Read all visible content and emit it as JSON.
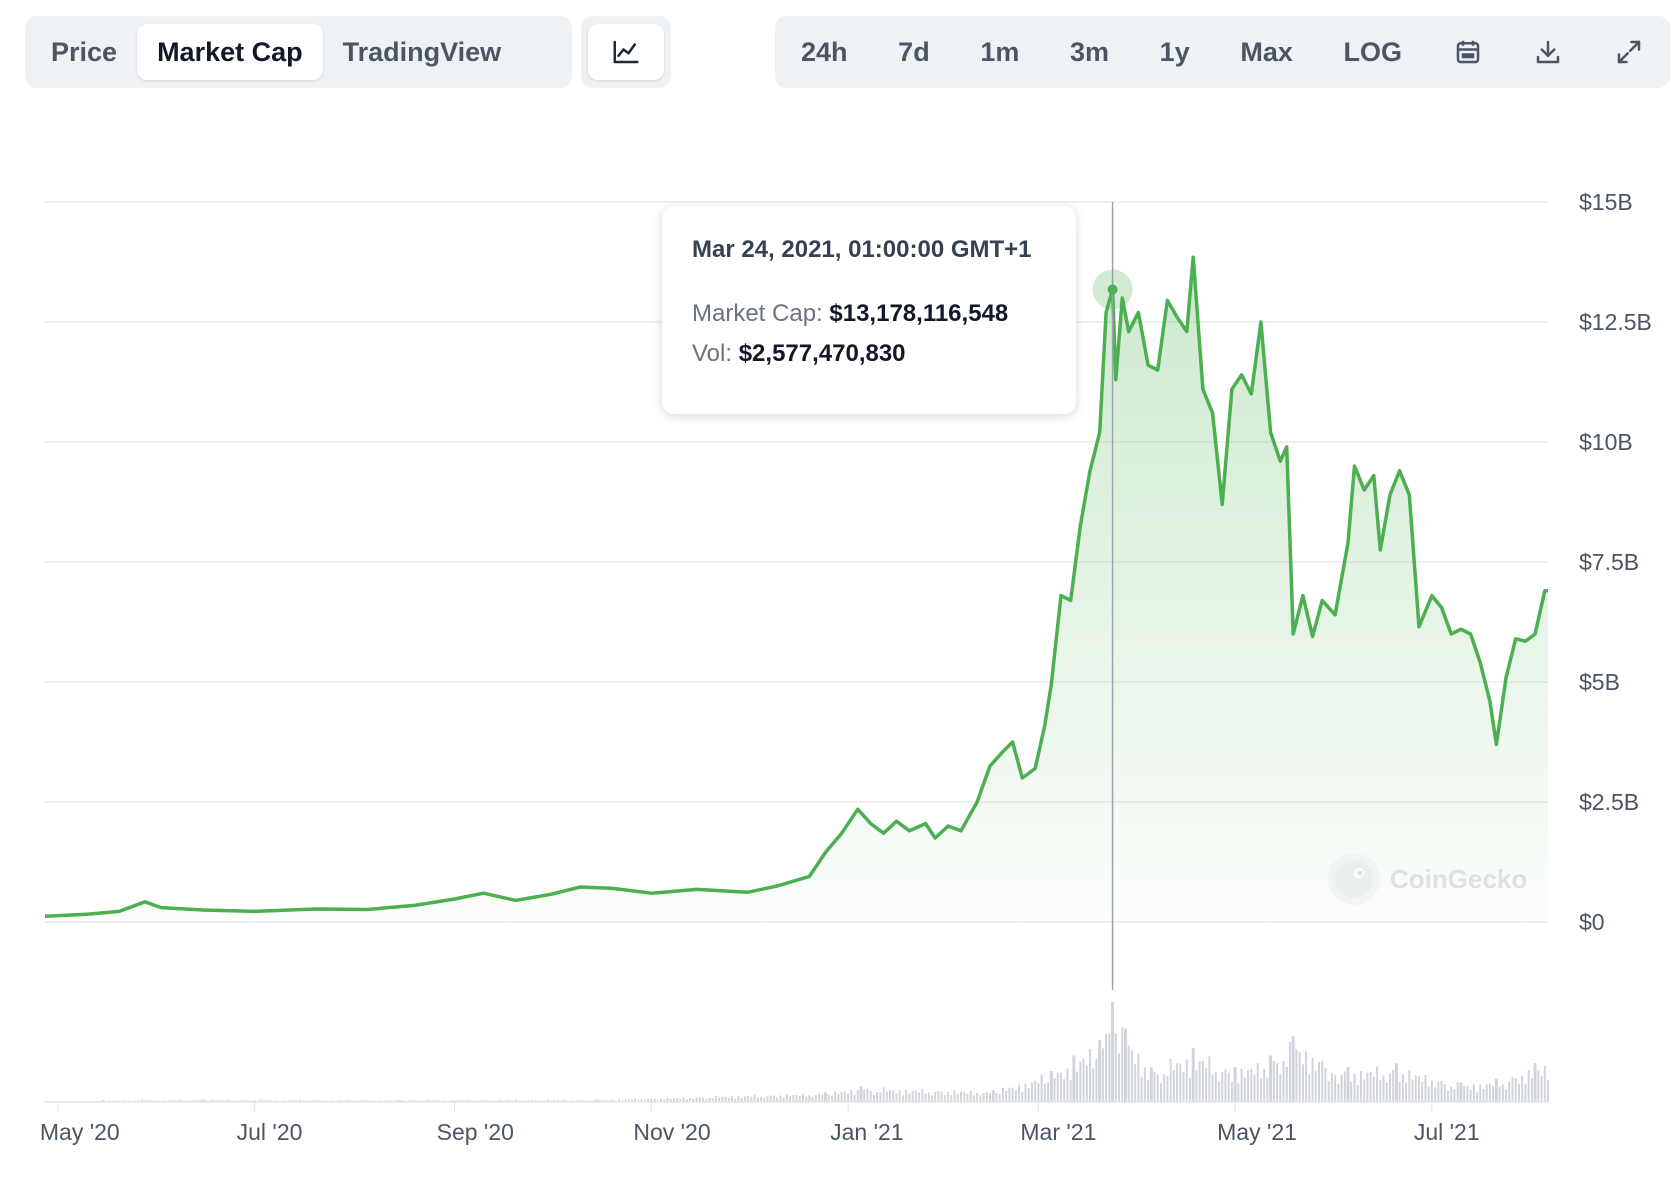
{
  "tabs": {
    "chart_type": [
      {
        "label": "Price",
        "active": false
      },
      {
        "label": "Market Cap",
        "active": true
      },
      {
        "label": "TradingView",
        "active": false
      }
    ],
    "chart_style_icon": "line-chart-icon",
    "ranges": [
      {
        "label": "24h"
      },
      {
        "label": "7d"
      },
      {
        "label": "1m"
      },
      {
        "label": "3m"
      },
      {
        "label": "1y"
      },
      {
        "label": "Max"
      },
      {
        "label": "LOG"
      }
    ],
    "actions": {
      "calendar": "calendar-icon",
      "download": "download-icon",
      "fullscreen": "expand-icon"
    }
  },
  "tooltip": {
    "date": "Mar 24, 2021, 01:00:00 GMT+1",
    "market_cap_label": "Market Cap:",
    "market_cap_value": "$13,178,116,548",
    "vol_label": "Vol:",
    "vol_value": "$2,577,470,830"
  },
  "watermark": "CoinGecko",
  "colors": {
    "line": "#4caf50",
    "fill": "#4caf50",
    "grid": "#e5e7eb",
    "volume": "#d1d5db",
    "crosshair": "#9ca3af"
  },
  "chart_data": {
    "type": "area",
    "title": "",
    "xlabel": "",
    "ylabel": "",
    "y_ticks": [
      "$0",
      "$2.5B",
      "$5B",
      "$7.5B",
      "$10B",
      "$12.5B",
      "$15B"
    ],
    "ylim": [
      0,
      15000000000
    ],
    "x_ticks": [
      {
        "label": "May '20",
        "date": "2020-05-01"
      },
      {
        "label": "Jul '20",
        "date": "2020-07-01"
      },
      {
        "label": "Sep '20",
        "date": "2020-09-01"
      },
      {
        "label": "Nov '20",
        "date": "2020-11-01"
      },
      {
        "label": "Jan '21",
        "date": "2021-01-01"
      },
      {
        "label": "Mar '21",
        "date": "2021-03-01"
      },
      {
        "label": "May '21",
        "date": "2021-05-01"
      },
      {
        "label": "Jul '21",
        "date": "2021-07-01"
      }
    ],
    "xlim": [
      "2020-04-27",
      "2021-08-06"
    ],
    "grid": true,
    "highlight": {
      "date": "2021-03-24",
      "value": 13178116548
    },
    "series": [
      {
        "name": "Market Cap",
        "points": [
          [
            "2020-04-27",
            0.12
          ],
          [
            "2020-05-10",
            0.16
          ],
          [
            "2020-05-20",
            0.22
          ],
          [
            "2020-05-28",
            0.42
          ],
          [
            "2020-06-02",
            0.3
          ],
          [
            "2020-06-15",
            0.25
          ],
          [
            "2020-07-01",
            0.22
          ],
          [
            "2020-07-20",
            0.27
          ],
          [
            "2020-08-05",
            0.26
          ],
          [
            "2020-08-20",
            0.35
          ],
          [
            "2020-09-01",
            0.48
          ],
          [
            "2020-09-10",
            0.6
          ],
          [
            "2020-09-20",
            0.45
          ],
          [
            "2020-10-01",
            0.58
          ],
          [
            "2020-10-10",
            0.73
          ],
          [
            "2020-10-20",
            0.7
          ],
          [
            "2020-11-01",
            0.6
          ],
          [
            "2020-11-15",
            0.68
          ],
          [
            "2020-12-01",
            0.62
          ],
          [
            "2020-12-10",
            0.75
          ],
          [
            "2020-12-20",
            0.95
          ],
          [
            "2020-12-25",
            1.45
          ],
          [
            "2020-12-30",
            1.85
          ],
          [
            "2021-01-04",
            2.35
          ],
          [
            "2021-01-08",
            2.05
          ],
          [
            "2021-01-12",
            1.85
          ],
          [
            "2021-01-16",
            2.1
          ],
          [
            "2021-01-20",
            1.9
          ],
          [
            "2021-01-25",
            2.05
          ],
          [
            "2021-01-28",
            1.75
          ],
          [
            "2021-02-01",
            2.0
          ],
          [
            "2021-02-05",
            1.9
          ],
          [
            "2021-02-10",
            2.5
          ],
          [
            "2021-02-14",
            3.25
          ],
          [
            "2021-02-18",
            3.55
          ],
          [
            "2021-02-21",
            3.75
          ],
          [
            "2021-02-24",
            3.0
          ],
          [
            "2021-02-28",
            3.2
          ],
          [
            "2021-03-03",
            4.1
          ],
          [
            "2021-03-05",
            4.95
          ],
          [
            "2021-03-08",
            6.8
          ],
          [
            "2021-03-11",
            6.7
          ],
          [
            "2021-03-14",
            8.25
          ],
          [
            "2021-03-17",
            9.4
          ],
          [
            "2021-03-20",
            10.2
          ],
          [
            "2021-03-22",
            12.7
          ],
          [
            "2021-03-24",
            13.18
          ],
          [
            "2021-03-25",
            11.3
          ],
          [
            "2021-03-27",
            13.0
          ],
          [
            "2021-03-29",
            12.3
          ],
          [
            "2021-04-01",
            12.7
          ],
          [
            "2021-04-04",
            11.6
          ],
          [
            "2021-04-07",
            11.5
          ],
          [
            "2021-04-10",
            12.95
          ],
          [
            "2021-04-13",
            12.6
          ],
          [
            "2021-04-16",
            12.3
          ],
          [
            "2021-04-18",
            13.85
          ],
          [
            "2021-04-21",
            11.1
          ],
          [
            "2021-04-24",
            10.6
          ],
          [
            "2021-04-27",
            8.7
          ],
          [
            "2021-04-30",
            11.1
          ],
          [
            "2021-05-03",
            11.4
          ],
          [
            "2021-05-06",
            11.0
          ],
          [
            "2021-05-09",
            12.5
          ],
          [
            "2021-05-12",
            10.2
          ],
          [
            "2021-05-15",
            9.6
          ],
          [
            "2021-05-17",
            9.9
          ],
          [
            "2021-05-19",
            6.0
          ],
          [
            "2021-05-22",
            6.8
          ],
          [
            "2021-05-25",
            5.95
          ],
          [
            "2021-05-28",
            6.7
          ],
          [
            "2021-06-01",
            6.4
          ],
          [
            "2021-06-05",
            7.9
          ],
          [
            "2021-06-07",
            9.5
          ],
          [
            "2021-06-10",
            9.0
          ],
          [
            "2021-06-13",
            9.3
          ],
          [
            "2021-06-15",
            7.75
          ],
          [
            "2021-06-18",
            8.9
          ],
          [
            "2021-06-21",
            9.4
          ],
          [
            "2021-06-24",
            8.9
          ],
          [
            "2021-06-27",
            6.15
          ],
          [
            "2021-07-01",
            6.8
          ],
          [
            "2021-07-04",
            6.55
          ],
          [
            "2021-07-07",
            6.0
          ],
          [
            "2021-07-10",
            6.1
          ],
          [
            "2021-07-13",
            6.0
          ],
          [
            "2021-07-16",
            5.4
          ],
          [
            "2021-07-19",
            4.6
          ],
          [
            "2021-07-21",
            3.7
          ],
          [
            "2021-07-24",
            5.1
          ],
          [
            "2021-07-27",
            5.9
          ],
          [
            "2021-07-30",
            5.85
          ],
          [
            "2021-08-02",
            6.0
          ],
          [
            "2021-08-05",
            6.9
          ],
          [
            "2021-08-06",
            6.9
          ]
        ],
        "unit": "billion USD"
      }
    ],
    "volume_series": {
      "name": "Vol",
      "points": [
        [
          "2020-05-15",
          0.05
        ],
        [
          "2020-06-15",
          0.06
        ],
        [
          "2020-08-15",
          0.05
        ],
        [
          "2020-10-15",
          0.06
        ],
        [
          "2020-12-25",
          0.25
        ],
        [
          "2021-01-05",
          0.4
        ],
        [
          "2021-02-15",
          0.3
        ],
        [
          "2021-03-05",
          0.8
        ],
        [
          "2021-03-12",
          1.2
        ],
        [
          "2021-03-20",
          1.6
        ],
        [
          "2021-03-24",
          2.58
        ],
        [
          "2021-03-28",
          1.9
        ],
        [
          "2021-04-05",
          0.9
        ],
        [
          "2021-04-18",
          1.4
        ],
        [
          "2021-05-01",
          0.9
        ],
        [
          "2021-05-12",
          1.2
        ],
        [
          "2021-05-19",
          1.7
        ],
        [
          "2021-06-05",
          0.9
        ],
        [
          "2021-06-20",
          1.0
        ],
        [
          "2021-07-10",
          0.5
        ],
        [
          "2021-07-21",
          0.6
        ],
        [
          "2021-08-02",
          1.0
        ]
      ],
      "unit": "billion USD"
    }
  }
}
